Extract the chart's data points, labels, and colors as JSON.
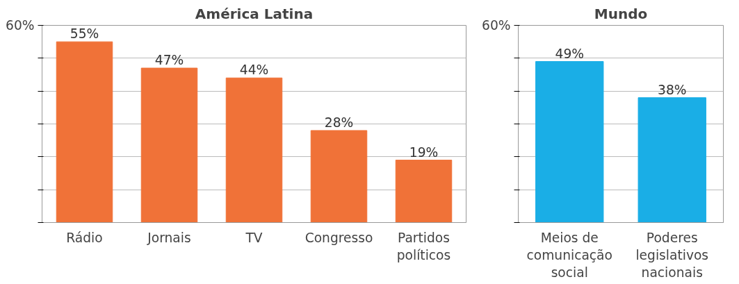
{
  "chart_data": [
    {
      "type": "bar",
      "title": "América Latina",
      "categories": [
        "Rádio",
        "Jornais",
        "TV",
        "Congresso",
        "Partidos políticos"
      ],
      "values": [
        55,
        47,
        44,
        28,
        19
      ],
      "value_labels": [
        "55%",
        "47%",
        "44%",
        "28%",
        "19%"
      ],
      "color": "#f07238",
      "ylim": [
        0,
        60
      ],
      "yticks": [
        {
          "value": 0,
          "label": null
        },
        {
          "value": 10,
          "label": null
        },
        {
          "value": 20,
          "label": null
        },
        {
          "value": 30,
          "label": null
        },
        {
          "value": 40,
          "label": null
        },
        {
          "value": 50,
          "label": null
        },
        {
          "value": 60,
          "label": "60%"
        }
      ],
      "grid": "y"
    },
    {
      "type": "bar",
      "title": "Mundo",
      "categories": [
        "Meios de comunicação social",
        "Poderes legislativos nacionais"
      ],
      "values": [
        49,
        38
      ],
      "value_labels": [
        "49%",
        "38%"
      ],
      "color": "#1aaee6",
      "ylim": [
        0,
        60
      ],
      "yticks": [
        {
          "value": 0,
          "label": null
        },
        {
          "value": 10,
          "label": null
        },
        {
          "value": 20,
          "label": null
        },
        {
          "value": 30,
          "label": null
        },
        {
          "value": 40,
          "label": null
        },
        {
          "value": 50,
          "label": null
        },
        {
          "value": 60,
          "label": "60%"
        }
      ],
      "grid": "y"
    }
  ]
}
